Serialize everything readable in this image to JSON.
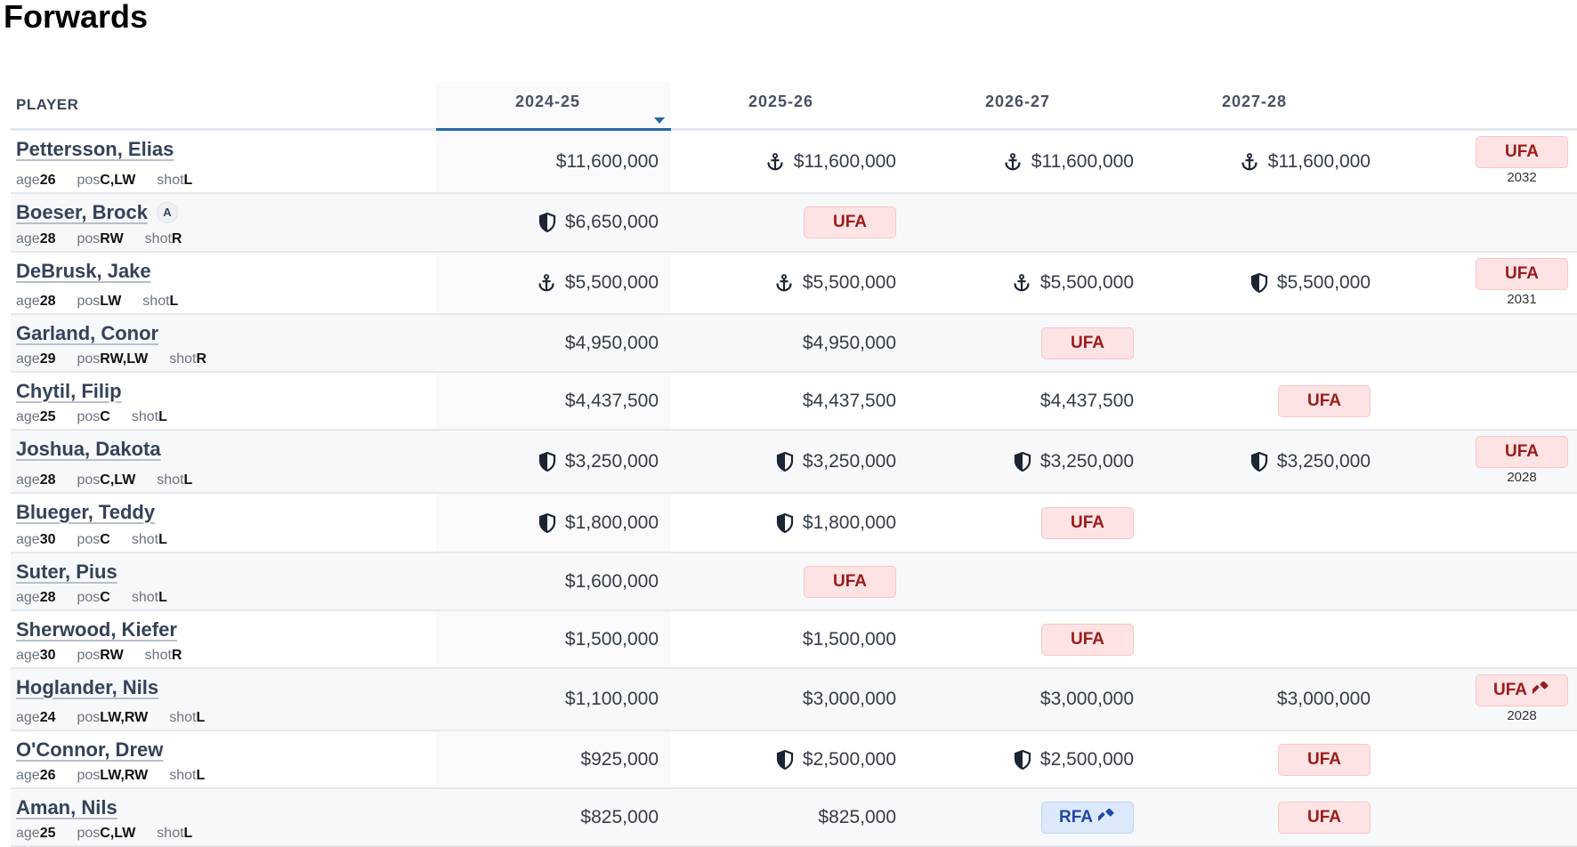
{
  "page_title": "Forwards",
  "header": {
    "player": "PLAYER",
    "seasons": [
      "2024-25",
      "2025-26",
      "2026-27",
      "2027-28"
    ]
  },
  "meta_labels": {
    "age": "age",
    "pos": "pos",
    "shot": "shot"
  },
  "colors": {
    "accent": "#2566a8",
    "ufa_bg": "#fde3e3",
    "ufa_text": "#9b1b1b",
    "rfa_bg": "#dce9fb",
    "rfa_text": "#1f47a6"
  },
  "players": [
    {
      "name": "Pettersson, Elias",
      "age": "26",
      "pos": "C,LW",
      "shot": "L",
      "cells": [
        {
          "v": "$11,600,000"
        },
        {
          "icon": "anchor",
          "v": "$11,600,000"
        },
        {
          "icon": "anchor",
          "v": "$11,600,000"
        },
        {
          "icon": "anchor",
          "v": "$11,600,000"
        }
      ],
      "final": {
        "badge": "UFA",
        "year": "2032"
      }
    },
    {
      "name": "Boeser, Brock",
      "badge": "A",
      "age": "28",
      "pos": "RW",
      "shot": "R",
      "cells": [
        {
          "icon": "shield",
          "v": "$6,650,000"
        },
        {
          "badge": "UFA"
        },
        null,
        null
      ]
    },
    {
      "name": "DeBrusk, Jake",
      "age": "28",
      "pos": "LW",
      "shot": "L",
      "cells": [
        {
          "icon": "anchor",
          "v": "$5,500,000"
        },
        {
          "icon": "anchor",
          "v": "$5,500,000"
        },
        {
          "icon": "anchor",
          "v": "$5,500,000"
        },
        {
          "icon": "shield",
          "v": "$5,500,000"
        }
      ],
      "final": {
        "badge": "UFA",
        "year": "2031"
      }
    },
    {
      "name": "Garland, Conor",
      "age": "29",
      "pos": "RW,LW",
      "shot": "R",
      "cells": [
        {
          "v": "$4,950,000"
        },
        {
          "v": "$4,950,000"
        },
        {
          "badge": "UFA"
        },
        null
      ]
    },
    {
      "name": "Chytil, Filip",
      "age": "25",
      "pos": "C",
      "shot": "L",
      "cells": [
        {
          "v": "$4,437,500"
        },
        {
          "v": "$4,437,500"
        },
        {
          "v": "$4,437,500"
        },
        {
          "badge": "UFA"
        }
      ]
    },
    {
      "name": "Joshua, Dakota",
      "age": "28",
      "pos": "C,LW",
      "shot": "L",
      "cells": [
        {
          "icon": "shield",
          "v": "$3,250,000"
        },
        {
          "icon": "shield",
          "v": "$3,250,000"
        },
        {
          "icon": "shield",
          "v": "$3,250,000"
        },
        {
          "icon": "shield",
          "v": "$3,250,000"
        }
      ],
      "final": {
        "badge": "UFA",
        "year": "2028"
      }
    },
    {
      "name": "Blueger, Teddy",
      "age": "30",
      "pos": "C",
      "shot": "L",
      "cells": [
        {
          "icon": "shield",
          "v": "$1,800,000"
        },
        {
          "icon": "shield",
          "v": "$1,800,000"
        },
        {
          "badge": "UFA"
        },
        null
      ]
    },
    {
      "name": "Suter, Pius",
      "age": "28",
      "pos": "C",
      "shot": "L",
      "cells": [
        {
          "v": "$1,600,000"
        },
        {
          "badge": "UFA"
        },
        null,
        null
      ]
    },
    {
      "name": "Sherwood, Kiefer",
      "age": "30",
      "pos": "RW",
      "shot": "R",
      "cells": [
        {
          "v": "$1,500,000"
        },
        {
          "v": "$1,500,000"
        },
        {
          "badge": "UFA"
        },
        null
      ]
    },
    {
      "name": "Hoglander, Nils",
      "age": "24",
      "pos": "LW,RW",
      "shot": "L",
      "cells": [
        {
          "v": "$1,100,000"
        },
        {
          "v": "$3,000,000"
        },
        {
          "v": "$3,000,000"
        },
        {
          "v": "$3,000,000"
        }
      ],
      "final": {
        "badge": "UFA",
        "hammer": true,
        "year": "2028"
      }
    },
    {
      "name": "O'Connor, Drew",
      "age": "26",
      "pos": "LW,RW",
      "shot": "L",
      "cells": [
        {
          "v": "$925,000"
        },
        {
          "icon": "shield",
          "v": "$2,500,000"
        },
        {
          "icon": "shield",
          "v": "$2,500,000"
        },
        {
          "badge": "UFA"
        }
      ]
    },
    {
      "name": "Aman, Nils",
      "age": "25",
      "pos": "C,LW",
      "shot": "L",
      "cells": [
        {
          "v": "$825,000"
        },
        {
          "v": "$825,000"
        },
        {
          "badge": "RFA",
          "hammer": true
        },
        {
          "badge": "UFA"
        }
      ]
    }
  ]
}
